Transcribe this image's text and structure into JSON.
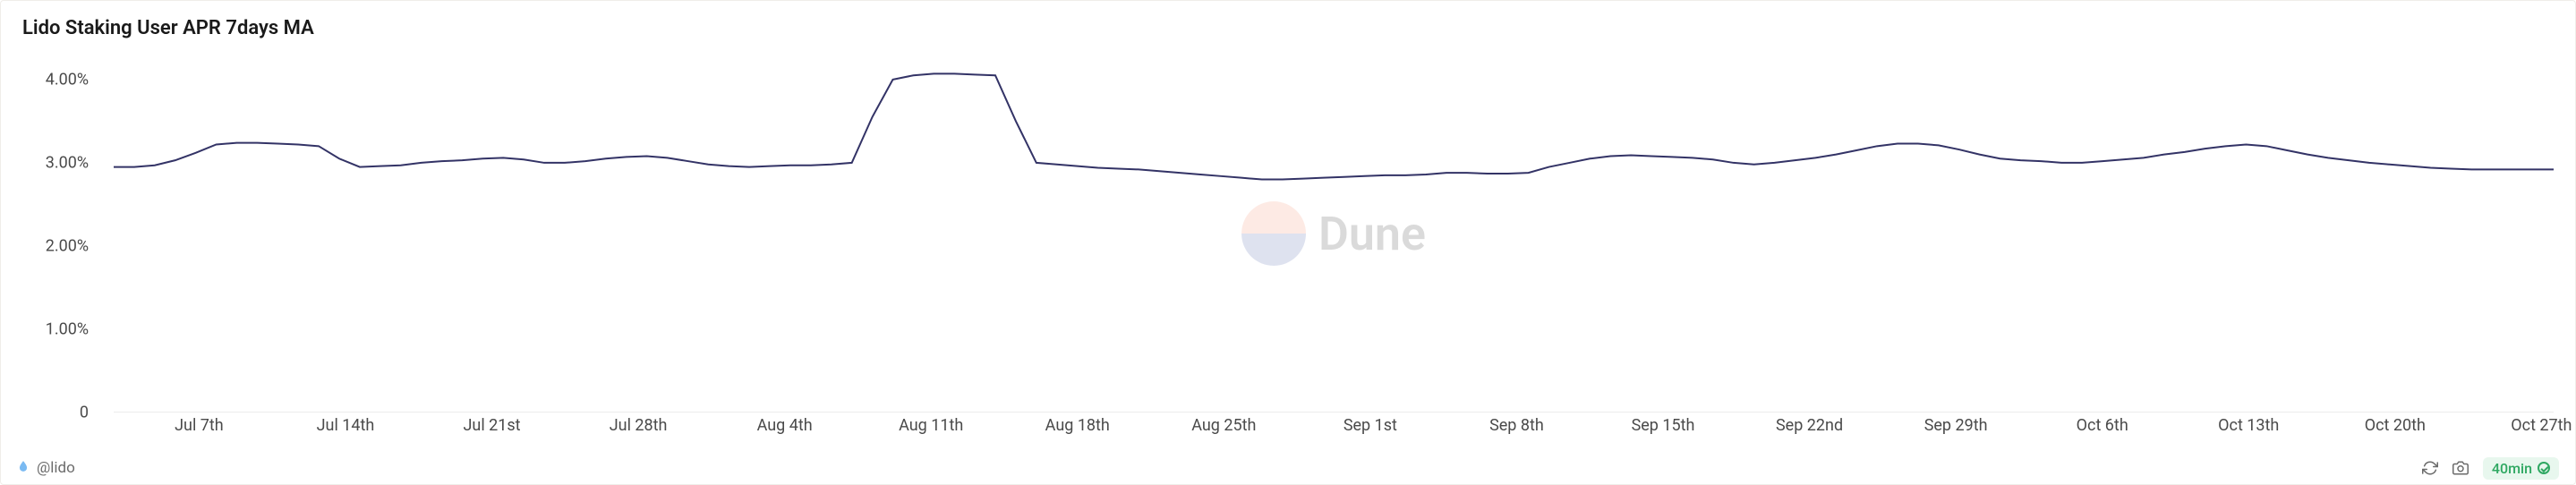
{
  "title": "Lido Staking User APR 7days MA",
  "footer": {
    "attribution": "@lido",
    "refresh_badge": "40min"
  },
  "watermark": {
    "text": "Dune",
    "top_color": "#f7a58a",
    "bottom_color": "#6b7db8"
  },
  "chart": {
    "type": "line",
    "line_color": "#333366",
    "line_width": 2,
    "background_color": "#ffffff",
    "y_axis": {
      "min": 0,
      "max": 4.3,
      "ticks": [
        {
          "value": 0,
          "label": "0"
        },
        {
          "value": 1.0,
          "label": "1.00%"
        },
        {
          "value": 2.0,
          "label": "2.00%"
        },
        {
          "value": 3.0,
          "label": "3.00%"
        },
        {
          "value": 4.0,
          "label": "4.00%"
        }
      ],
      "label_fontsize": 18,
      "label_color": "#4a4a4a"
    },
    "x_axis": {
      "labels": [
        "Jul 7th",
        "Jul 14th",
        "Jul 21st",
        "Jul 28th",
        "Aug 4th",
        "Aug 11th",
        "Aug 18th",
        "Aug 25th",
        "Sep 1st",
        "Sep 8th",
        "Sep 15th",
        "Sep 22nd",
        "Sep 29th",
        "Oct 6th",
        "Oct 13th",
        "Oct 20th",
        "Oct 27th"
      ],
      "label_fontsize": 18,
      "label_color": "#4a4a4a"
    },
    "series": [
      {
        "i": 0,
        "y": 2.95
      },
      {
        "i": 1,
        "y": 2.95
      },
      {
        "i": 2,
        "y": 2.97
      },
      {
        "i": 3,
        "y": 3.03
      },
      {
        "i": 4,
        "y": 3.12
      },
      {
        "i": 5,
        "y": 3.22
      },
      {
        "i": 6,
        "y": 3.24
      },
      {
        "i": 7,
        "y": 3.24
      },
      {
        "i": 8,
        "y": 3.23
      },
      {
        "i": 9,
        "y": 3.22
      },
      {
        "i": 10,
        "y": 3.2
      },
      {
        "i": 11,
        "y": 3.05
      },
      {
        "i": 12,
        "y": 2.95
      },
      {
        "i": 13,
        "y": 2.96
      },
      {
        "i": 14,
        "y": 2.97
      },
      {
        "i": 15,
        "y": 3.0
      },
      {
        "i": 16,
        "y": 3.02
      },
      {
        "i": 17,
        "y": 3.03
      },
      {
        "i": 18,
        "y": 3.05
      },
      {
        "i": 19,
        "y": 3.06
      },
      {
        "i": 20,
        "y": 3.04
      },
      {
        "i": 21,
        "y": 3.0
      },
      {
        "i": 22,
        "y": 3.0
      },
      {
        "i": 23,
        "y": 3.02
      },
      {
        "i": 24,
        "y": 3.05
      },
      {
        "i": 25,
        "y": 3.07
      },
      {
        "i": 26,
        "y": 3.08
      },
      {
        "i": 27,
        "y": 3.06
      },
      {
        "i": 28,
        "y": 3.02
      },
      {
        "i": 29,
        "y": 2.98
      },
      {
        "i": 30,
        "y": 2.96
      },
      {
        "i": 31,
        "y": 2.95
      },
      {
        "i": 32,
        "y": 2.96
      },
      {
        "i": 33,
        "y": 2.97
      },
      {
        "i": 34,
        "y": 2.97
      },
      {
        "i": 35,
        "y": 2.98
      },
      {
        "i": 36,
        "y": 3.0
      },
      {
        "i": 37,
        "y": 3.55
      },
      {
        "i": 38,
        "y": 4.0
      },
      {
        "i": 39,
        "y": 4.05
      },
      {
        "i": 40,
        "y": 4.07
      },
      {
        "i": 41,
        "y": 4.07
      },
      {
        "i": 42,
        "y": 4.06
      },
      {
        "i": 43,
        "y": 4.05
      },
      {
        "i": 44,
        "y": 3.5
      },
      {
        "i": 45,
        "y": 3.0
      },
      {
        "i": 46,
        "y": 2.98
      },
      {
        "i": 47,
        "y": 2.96
      },
      {
        "i": 48,
        "y": 2.94
      },
      {
        "i": 49,
        "y": 2.93
      },
      {
        "i": 50,
        "y": 2.92
      },
      {
        "i": 51,
        "y": 2.9
      },
      {
        "i": 52,
        "y": 2.88
      },
      {
        "i": 53,
        "y": 2.86
      },
      {
        "i": 54,
        "y": 2.84
      },
      {
        "i": 55,
        "y": 2.82
      },
      {
        "i": 56,
        "y": 2.8
      },
      {
        "i": 57,
        "y": 2.8
      },
      {
        "i": 58,
        "y": 2.81
      },
      {
        "i": 59,
        "y": 2.82
      },
      {
        "i": 60,
        "y": 2.83
      },
      {
        "i": 61,
        "y": 2.84
      },
      {
        "i": 62,
        "y": 2.85
      },
      {
        "i": 63,
        "y": 2.85
      },
      {
        "i": 64,
        "y": 2.86
      },
      {
        "i": 65,
        "y": 2.88
      },
      {
        "i": 66,
        "y": 2.88
      },
      {
        "i": 67,
        "y": 2.87
      },
      {
        "i": 68,
        "y": 2.87
      },
      {
        "i": 69,
        "y": 2.88
      },
      {
        "i": 70,
        "y": 2.95
      },
      {
        "i": 71,
        "y": 3.0
      },
      {
        "i": 72,
        "y": 3.05
      },
      {
        "i": 73,
        "y": 3.08
      },
      {
        "i": 74,
        "y": 3.09
      },
      {
        "i": 75,
        "y": 3.08
      },
      {
        "i": 76,
        "y": 3.07
      },
      {
        "i": 77,
        "y": 3.06
      },
      {
        "i": 78,
        "y": 3.04
      },
      {
        "i": 79,
        "y": 3.0
      },
      {
        "i": 80,
        "y": 2.98
      },
      {
        "i": 81,
        "y": 3.0
      },
      {
        "i": 82,
        "y": 3.03
      },
      {
        "i": 83,
        "y": 3.06
      },
      {
        "i": 84,
        "y": 3.1
      },
      {
        "i": 85,
        "y": 3.15
      },
      {
        "i": 86,
        "y": 3.2
      },
      {
        "i": 87,
        "y": 3.23
      },
      {
        "i": 88,
        "y": 3.23
      },
      {
        "i": 89,
        "y": 3.21
      },
      {
        "i": 90,
        "y": 3.16
      },
      {
        "i": 91,
        "y": 3.1
      },
      {
        "i": 92,
        "y": 3.05
      },
      {
        "i": 93,
        "y": 3.03
      },
      {
        "i": 94,
        "y": 3.02
      },
      {
        "i": 95,
        "y": 3.0
      },
      {
        "i": 96,
        "y": 3.0
      },
      {
        "i": 97,
        "y": 3.02
      },
      {
        "i": 98,
        "y": 3.04
      },
      {
        "i": 99,
        "y": 3.06
      },
      {
        "i": 100,
        "y": 3.1
      },
      {
        "i": 101,
        "y": 3.13
      },
      {
        "i": 102,
        "y": 3.17
      },
      {
        "i": 103,
        "y": 3.2
      },
      {
        "i": 104,
        "y": 3.22
      },
      {
        "i": 105,
        "y": 3.2
      },
      {
        "i": 106,
        "y": 3.15
      },
      {
        "i": 107,
        "y": 3.1
      },
      {
        "i": 108,
        "y": 3.06
      },
      {
        "i": 109,
        "y": 3.03
      },
      {
        "i": 110,
        "y": 3.0
      },
      {
        "i": 111,
        "y": 2.98
      },
      {
        "i": 112,
        "y": 2.96
      },
      {
        "i": 113,
        "y": 2.94
      },
      {
        "i": 114,
        "y": 2.93
      },
      {
        "i": 115,
        "y": 2.92
      },
      {
        "i": 116,
        "y": 2.92
      },
      {
        "i": 117,
        "y": 2.92
      },
      {
        "i": 118,
        "y": 2.92
      },
      {
        "i": 119,
        "y": 2.92
      }
    ],
    "n_points": 120
  }
}
